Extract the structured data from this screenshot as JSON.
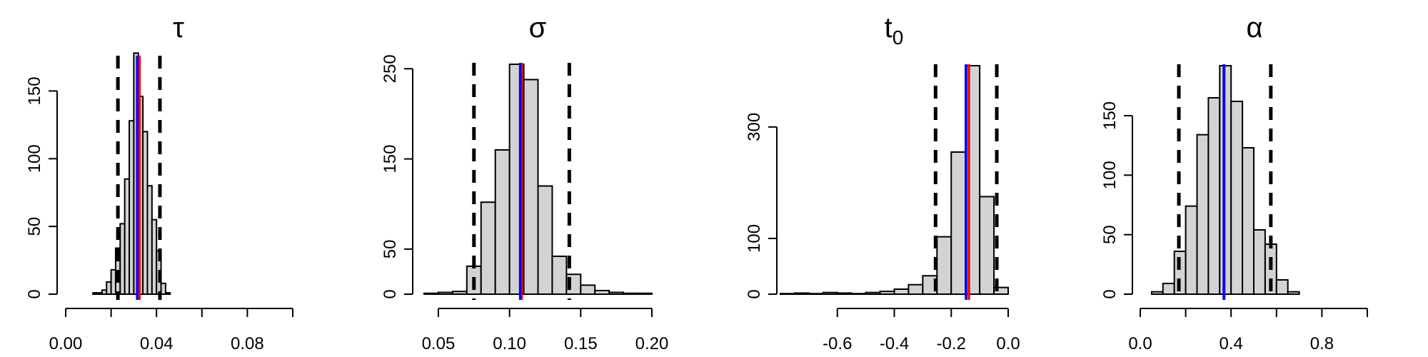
{
  "chart_data": [
    {
      "type": "histogram",
      "title": "τ",
      "title_sub": "",
      "xlim": [
        0.0,
        0.1
      ],
      "ylim": [
        0,
        175
      ],
      "x_ticks": [
        0.0,
        0.02,
        0.04,
        0.06,
        0.08,
        0.1
      ],
      "x_tick_labels": [
        "0.00",
        "0.04",
        "0.08"
      ],
      "x_tick_label_values": [
        0.0,
        0.04,
        0.08
      ],
      "y_ticks": [
        0,
        50,
        100,
        150
      ],
      "y_tick_labels": [
        "0",
        "50",
        "100",
        "150"
      ],
      "bins": [
        {
          "x0": 0.012,
          "x1": 0.014,
          "count": 1
        },
        {
          "x0": 0.014,
          "x1": 0.016,
          "count": 1
        },
        {
          "x0": 0.016,
          "x1": 0.018,
          "count": 3
        },
        {
          "x0": 0.018,
          "x1": 0.02,
          "count": 9
        },
        {
          "x0": 0.02,
          "x1": 0.022,
          "count": 18
        },
        {
          "x0": 0.022,
          "x1": 0.024,
          "count": 34
        },
        {
          "x0": 0.024,
          "x1": 0.026,
          "count": 52
        },
        {
          "x0": 0.026,
          "x1": 0.028,
          "count": 85
        },
        {
          "x0": 0.028,
          "x1": 0.03,
          "count": 128
        },
        {
          "x0": 0.03,
          "x1": 0.032,
          "count": 178
        },
        {
          "x0": 0.032,
          "x1": 0.034,
          "count": 146
        },
        {
          "x0": 0.034,
          "x1": 0.036,
          "count": 120
        },
        {
          "x0": 0.036,
          "x1": 0.038,
          "count": 80
        },
        {
          "x0": 0.038,
          "x1": 0.04,
          "count": 55
        },
        {
          "x0": 0.04,
          "x1": 0.042,
          "count": 32
        },
        {
          "x0": 0.042,
          "x1": 0.044,
          "count": 8
        },
        {
          "x0": 0.044,
          "x1": 0.046,
          "count": 1
        }
      ],
      "ci_lower": 0.023,
      "ci_upper": 0.0415,
      "mean_red": 0.0325,
      "mean_blue": 0.0315,
      "colors": {
        "bar_fill": "#d3d3d3",
        "red": "#ff0000",
        "blue": "#0000ff"
      }
    },
    {
      "type": "histogram",
      "title": "σ",
      "title_sub": "",
      "xlim": [
        0.04,
        0.2
      ],
      "ylim": [
        0,
        255
      ],
      "x_ticks": [
        0.05,
        0.1,
        0.15,
        0.2
      ],
      "x_tick_labels": [
        "0.05",
        "0.10",
        "0.15",
        "0.20"
      ],
      "x_tick_label_values": [
        0.05,
        0.1,
        0.15,
        0.2
      ],
      "y_ticks": [
        0,
        50,
        150,
        250
      ],
      "y_tick_labels": [
        "0",
        "50",
        "150",
        "250"
      ],
      "bins": [
        {
          "x0": 0.04,
          "x1": 0.05,
          "count": 1
        },
        {
          "x0": 0.05,
          "x1": 0.06,
          "count": 2
        },
        {
          "x0": 0.06,
          "x1": 0.07,
          "count": 3
        },
        {
          "x0": 0.07,
          "x1": 0.08,
          "count": 31
        },
        {
          "x0": 0.08,
          "x1": 0.09,
          "count": 102
        },
        {
          "x0": 0.09,
          "x1": 0.1,
          "count": 160
        },
        {
          "x0": 0.1,
          "x1": 0.11,
          "count": 255
        },
        {
          "x0": 0.11,
          "x1": 0.12,
          "count": 238
        },
        {
          "x0": 0.12,
          "x1": 0.13,
          "count": 120
        },
        {
          "x0": 0.13,
          "x1": 0.14,
          "count": 42
        },
        {
          "x0": 0.14,
          "x1": 0.15,
          "count": 22
        },
        {
          "x0": 0.15,
          "x1": 0.16,
          "count": 10
        },
        {
          "x0": 0.16,
          "x1": 0.17,
          "count": 4
        },
        {
          "x0": 0.17,
          "x1": 0.18,
          "count": 2
        },
        {
          "x0": 0.18,
          "x1": 0.19,
          "count": 1
        },
        {
          "x0": 0.19,
          "x1": 0.2,
          "count": 1
        }
      ],
      "ci_lower": 0.075,
      "ci_upper": 0.142,
      "mean_red": 0.1085,
      "mean_blue": 0.1075,
      "colors": {
        "bar_fill": "#d3d3d3",
        "red": "#ff0000",
        "blue": "#0000ff"
      }
    },
    {
      "type": "histogram",
      "title": "t",
      "title_sub": "0",
      "xlim": [
        -0.8,
        0.0
      ],
      "ylim": [
        0,
        410
      ],
      "x_ticks": [
        -0.6,
        -0.4,
        -0.2,
        0.0
      ],
      "x_tick_labels": [
        "-0.6",
        "-0.4",
        "-0.2",
        "0.0"
      ],
      "x_tick_label_values": [
        -0.6,
        -0.4,
        -0.2,
        0.0
      ],
      "y_ticks": [
        0,
        100,
        300
      ],
      "y_tick_labels": [
        "0",
        "100",
        "300"
      ],
      "bins": [
        {
          "x0": -0.8,
          "x1": -0.75,
          "count": 1
        },
        {
          "x0": -0.75,
          "x1": -0.7,
          "count": 2
        },
        {
          "x0": -0.7,
          "x1": -0.65,
          "count": 1
        },
        {
          "x0": -0.65,
          "x1": -0.6,
          "count": 3
        },
        {
          "x0": -0.6,
          "x1": -0.55,
          "count": 2
        },
        {
          "x0": -0.55,
          "x1": -0.5,
          "count": 1
        },
        {
          "x0": -0.5,
          "x1": -0.45,
          "count": 3
        },
        {
          "x0": -0.45,
          "x1": -0.4,
          "count": 5
        },
        {
          "x0": -0.4,
          "x1": -0.35,
          "count": 9
        },
        {
          "x0": -0.35,
          "x1": -0.3,
          "count": 17
        },
        {
          "x0": -0.3,
          "x1": -0.25,
          "count": 33
        },
        {
          "x0": -0.25,
          "x1": -0.2,
          "count": 103
        },
        {
          "x0": -0.2,
          "x1": -0.15,
          "count": 255
        },
        {
          "x0": -0.15,
          "x1": -0.1,
          "count": 410
        },
        {
          "x0": -0.1,
          "x1": -0.05,
          "count": 175
        },
        {
          "x0": -0.05,
          "x1": 0.0,
          "count": 12
        }
      ],
      "ci_lower": -0.255,
      "ci_upper": -0.04,
      "mean_red": -0.138,
      "mean_blue": -0.148,
      "colors": {
        "bar_fill": "#d3d3d3",
        "red": "#ff0000",
        "blue": "#0000ff"
      }
    },
    {
      "type": "histogram",
      "title": "α",
      "title_sub": "",
      "xlim": [
        0.0,
        1.0
      ],
      "ylim": [
        0,
        192
      ],
      "x_ticks": [
        0.0,
        0.2,
        0.4,
        0.6,
        0.8,
        1.0
      ],
      "x_tick_labels": [
        "0.0",
        "0.4",
        "0.8"
      ],
      "x_tick_label_values": [
        0.0,
        0.4,
        0.8
      ],
      "y_ticks": [
        0,
        50,
        100,
        150
      ],
      "y_tick_labels": [
        "0",
        "50",
        "100",
        "150"
      ],
      "bins": [
        {
          "x0": 0.05,
          "x1": 0.1,
          "count": 2
        },
        {
          "x0": 0.1,
          "x1": 0.15,
          "count": 9
        },
        {
          "x0": 0.15,
          "x1": 0.2,
          "count": 36
        },
        {
          "x0": 0.2,
          "x1": 0.25,
          "count": 74
        },
        {
          "x0": 0.25,
          "x1": 0.3,
          "count": 134
        },
        {
          "x0": 0.3,
          "x1": 0.35,
          "count": 165
        },
        {
          "x0": 0.35,
          "x1": 0.4,
          "count": 192
        },
        {
          "x0": 0.4,
          "x1": 0.45,
          "count": 162
        },
        {
          "x0": 0.45,
          "x1": 0.5,
          "count": 123
        },
        {
          "x0": 0.5,
          "x1": 0.55,
          "count": 54
        },
        {
          "x0": 0.55,
          "x1": 0.6,
          "count": 42
        },
        {
          "x0": 0.6,
          "x1": 0.65,
          "count": 12
        },
        {
          "x0": 0.65,
          "x1": 0.7,
          "count": 2
        }
      ],
      "ci_lower": 0.17,
      "ci_upper": 0.575,
      "mean_red": 0.37,
      "mean_blue": 0.368,
      "colors": {
        "bar_fill": "#d3d3d3",
        "red": "#ff0000",
        "blue": "#0000ff"
      }
    }
  ]
}
